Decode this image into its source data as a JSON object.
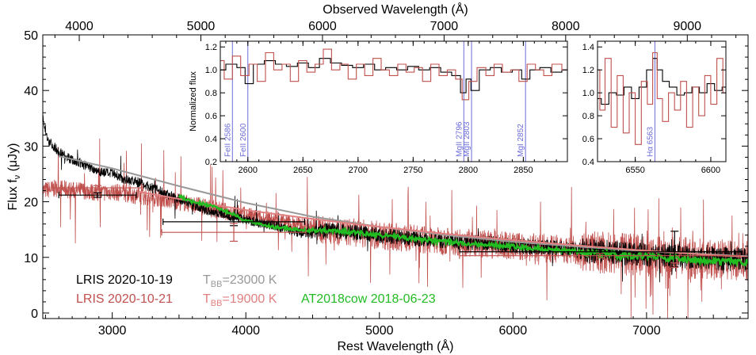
{
  "chart_data": {
    "type": "line",
    "main": {
      "xlabel": "Rest Wavelength (Å)",
      "ylabel": "Flux f_ν (μJy)",
      "ylabel_parts": {
        "base": "Flux f",
        "sub": "ν",
        "unit": " (μJy)"
      },
      "x2label": "Observed Wavelength (Å)",
      "xlim": [
        2480,
        7760
      ],
      "ylim": [
        -1,
        50
      ],
      "x2lim": [
        3700,
        9500
      ],
      "xticks": [
        3000,
        4000,
        5000,
        6000,
        7000
      ],
      "yticks": [
        0,
        10,
        20,
        30,
        40,
        50
      ],
      "x2ticks": [
        4000,
        5000,
        6000,
        7000,
        8000,
        9000
      ],
      "series": [
        {
          "key": "lris19",
          "name": "LRIS 2020-10-19",
          "color": "#000000",
          "x": [
            2480,
            2520,
            2600,
            2700,
            2800,
            2900,
            3000,
            3100,
            3200,
            3300,
            3400,
            3500,
            3600,
            3700,
            3800,
            3900,
            4000,
            4100,
            4200,
            4300,
            4400,
            4500,
            4600,
            4800,
            5000,
            5200,
            5400,
            5600,
            5800,
            6000,
            6200,
            6400,
            6600,
            6800,
            7000,
            7200,
            7400,
            7600,
            7760
          ],
          "y": [
            35,
            31,
            29,
            27.5,
            26.5,
            25.5,
            25,
            24,
            23.5,
            22.5,
            21.5,
            20.5,
            19.5,
            18.5,
            18,
            17.3,
            16.8,
            16.2,
            15.8,
            15,
            14.5,
            14.2,
            14.8,
            14.5,
            14,
            13.6,
            13.2,
            12.8,
            12.5,
            12,
            11.8,
            11.5,
            11.2,
            10.8,
            10.5,
            10.2,
            10,
            9.7,
            9.5
          ]
        },
        {
          "key": "lris21",
          "name": "LRIS 2020-10-21",
          "color": "#c0504d",
          "x": [
            2480,
            2600,
            2700,
            2800,
            2900,
            3000,
            3100,
            3200,
            3300,
            3400,
            3500,
            3600,
            3700,
            3800,
            3900,
            4000,
            4100,
            4200,
            4300,
            4400,
            4500,
            4600,
            4800,
            5000,
            5200,
            5400,
            5600,
            5800,
            6000,
            6200,
            6400,
            6600,
            6800,
            7000,
            7200,
            7400,
            7600,
            7760
          ],
          "y": [
            22,
            22.5,
            22,
            22,
            21.5,
            21.8,
            21.5,
            21,
            20.8,
            20.5,
            20,
            19.5,
            19,
            18.5,
            18,
            17.5,
            17,
            16.6,
            16.2,
            15.8,
            15.3,
            14.8,
            14.5,
            14,
            13.5,
            13,
            12.8,
            12.4,
            12,
            11.7,
            11.4,
            11,
            10.6,
            10.3,
            10,
            9.7,
            9.4,
            9.2
          ]
        },
        {
          "key": "bb23",
          "name": "T_BB=23000 K",
          "color": "#999999",
          "x": [
            2600,
            3000,
            3500,
            4000,
            4500,
            5000,
            5500,
            6000,
            6500,
            7000,
            7500,
            7760
          ],
          "y": [
            28.2,
            26,
            22.8,
            19.8,
            17.3,
            15.5,
            14,
            12.8,
            11.9,
            11.1,
            10.5,
            10.2
          ]
        },
        {
          "key": "bb19",
          "name": "T_BB=19000 K",
          "color": "#e08080",
          "x": [
            3200,
            3500,
            4000,
            4500,
            5000,
            5500,
            6000,
            6500,
            7000,
            7500,
            7760
          ],
          "y": [
            21.8,
            20.5,
            18.5,
            16.9,
            15.5,
            14.2,
            13.1,
            12.1,
            11.2,
            10.4,
            10.1
          ]
        },
        {
          "key": "cow",
          "name": "AT2018cow 2018-06-23",
          "color": "#22bb22",
          "x": [
            3500,
            3600,
            3700,
            3800,
            3900,
            4000,
            4100,
            4200,
            4300,
            4400,
            4500,
            4600,
            4800,
            5000,
            5200,
            5400,
            5600,
            5800,
            6000,
            6200,
            6400,
            6600,
            6800,
            7000,
            7200,
            7400,
            7600,
            7760
          ],
          "y": [
            21,
            20,
            19.5,
            18.8,
            17.8,
            16.5,
            16,
            15.5,
            15.2,
            15,
            14.8,
            14.8,
            14.5,
            14,
            13.5,
            13,
            12.6,
            12.3,
            12,
            11.6,
            11.2,
            10.8,
            10.4,
            10.1,
            9.8,
            9.5,
            9.2,
            9.0
          ]
        }
      ],
      "photometry": [
        {
          "color": "#000000",
          "x": 2890,
          "xerr": 290,
          "y": 21.2,
          "yerr": 0.4
        },
        {
          "color": "#c0504d",
          "x": 2890,
          "xerr": 340,
          "y": 22.5,
          "yerr": 0.4
        },
        {
          "color": "#000000",
          "x": 3910,
          "xerr": 530,
          "y": 16.4,
          "yerr": 0.7
        },
        {
          "color": "#c0504d",
          "x": 3910,
          "xerr": 540,
          "y": 14.5,
          "yerr": 1.6
        },
        {
          "color": "#000000",
          "x": 6650,
          "xerr": 1050,
          "y": 11.0,
          "yerr": 0.4
        },
        {
          "color": "#c0504d",
          "x": 6650,
          "xerr": 1050,
          "y": 10.3,
          "yerr": 0.4
        },
        {
          "color": "#000000",
          "x": 7210,
          "xerr": 0,
          "y": 11.5,
          "yerr": 3.2
        },
        {
          "color": "#c0504d",
          "x": 7210,
          "xerr": 0,
          "y": 8.6,
          "yerr": 0.4
        }
      ],
      "legend": [
        {
          "text": "LRIS 2020-10-19",
          "color": "#000000"
        },
        {
          "text": "LRIS 2020-10-21",
          "color": "#c0504d"
        },
        {
          "text_base": "T",
          "text_sub": "BB",
          "text_rest": "=23000 K",
          "color": "#999999"
        },
        {
          "text_base": "T",
          "text_sub": "BB",
          "text_rest": "=19000 K",
          "color": "#e08080"
        },
        {
          "text": "AT2018cow 2018-06-23",
          "color": "#22bb22"
        }
      ]
    },
    "inset_uv": {
      "ylabel": "Normalized flux",
      "xlim": [
        2575,
        2890
      ],
      "ylim": [
        0.2,
        1.25
      ],
      "xticks": [
        2600,
        2650,
        2700,
        2750,
        2800,
        2850
      ],
      "yticks": [
        0.2,
        0.4,
        0.6,
        0.8,
        1.0,
        1.2
      ],
      "ytick_labels": [
        "0.2",
        "0.4",
        "0.6",
        "0.8",
        "1.0",
        "1.2"
      ],
      "lines": [
        {
          "x": 2586,
          "label": "FeII 2586"
        },
        {
          "x": 2600,
          "label": "FeII 2600"
        },
        {
          "x": 2796,
          "label": "MgII 2796"
        },
        {
          "x": 2803,
          "label": "MgII 2803"
        },
        {
          "x": 2852,
          "label": "MgI 2852"
        }
      ],
      "series": [
        {
          "key": "uv_black",
          "color": "#000000",
          "x": [
            2575,
            2585,
            2595,
            2600,
            2610,
            2620,
            2630,
            2640,
            2650,
            2660,
            2670,
            2680,
            2690,
            2700,
            2710,
            2720,
            2730,
            2740,
            2750,
            2760,
            2770,
            2780,
            2790,
            2796,
            2800,
            2805,
            2815,
            2825,
            2835,
            2845,
            2852,
            2860,
            2870,
            2880,
            2890
          ],
          "y": [
            1.0,
            1.05,
            1.02,
            0.88,
            1.05,
            1.08,
            1.05,
            1.03,
            1.06,
            1.02,
            1.1,
            1.06,
            1.04,
            1.02,
            1.05,
            1.0,
            1.02,
            1.0,
            1.03,
            1.0,
            1.02,
            0.98,
            0.95,
            0.8,
            0.92,
            0.82,
            1.0,
            1.02,
            0.98,
            1.0,
            0.92,
            1.0,
            1.02,
            0.98,
            1.0
          ]
        },
        {
          "key": "uv_red",
          "color": "#c0504d",
          "x": [
            2575,
            2582,
            2590,
            2597,
            2605,
            2612,
            2620,
            2627,
            2635,
            2642,
            2650,
            2657,
            2665,
            2672,
            2680,
            2687,
            2695,
            2702,
            2710,
            2717,
            2725,
            2732,
            2740,
            2747,
            2755,
            2762,
            2770,
            2777,
            2785,
            2792,
            2797,
            2804,
            2812,
            2820,
            2827,
            2835,
            2842,
            2850,
            2857,
            2865,
            2872,
            2880,
            2890
          ],
          "y": [
            1.08,
            0.92,
            1.12,
            0.95,
            1.05,
            0.9,
            1.15,
            1.0,
            1.05,
            0.9,
            1.08,
            0.98,
            1.05,
            1.18,
            1.0,
            1.05,
            0.92,
            1.05,
            0.95,
            1.1,
            1.0,
            0.95,
            1.05,
            0.98,
            1.02,
            0.9,
            1.05,
            0.95,
            1.0,
            0.92,
            0.74,
            0.9,
            1.02,
            0.95,
            1.05,
            0.98,
            1.0,
            0.9,
            1.05,
            1.0,
            0.95,
            1.05,
            1.0
          ]
        }
      ]
    },
    "inset_ha": {
      "xlim": [
        6525,
        6610
      ],
      "ylim": [
        0.4,
        1.45
      ],
      "xticks": [
        6550,
        6600
      ],
      "yticks": [
        0.4,
        0.6,
        0.8,
        1.0,
        1.2,
        1.4
      ],
      "ytick_labels": [
        "0.4",
        "0.6",
        "0.8",
        "1.0",
        "1.2",
        "1.4"
      ],
      "lines": [
        {
          "x": 6563,
          "label": "Hα 6563"
        }
      ],
      "series": [
        {
          "key": "ha_black",
          "color": "#000000",
          "x": [
            6525,
            6530,
            6535,
            6540,
            6545,
            6550,
            6555,
            6560,
            6563,
            6566,
            6570,
            6575,
            6580,
            6585,
            6590,
            6595,
            6600,
            6605,
            6610
          ],
          "y": [
            0.95,
            0.9,
            1.0,
            0.98,
            1.05,
            0.95,
            1.05,
            1.2,
            1.3,
            1.2,
            1.1,
            1.05,
            0.98,
            1.0,
            1.05,
            1.0,
            1.08,
            1.02,
            1.05
          ]
        },
        {
          "key": "ha_red",
          "color": "#c0504d",
          "x": [
            6525,
            6528,
            6532,
            6536,
            6540,
            6544,
            6548,
            6552,
            6556,
            6560,
            6563,
            6566,
            6570,
            6574,
            6578,
            6582,
            6586,
            6590,
            6594,
            6598,
            6602,
            6606,
            6610
          ],
          "y": [
            1.2,
            0.85,
            1.3,
            0.7,
            1.15,
            0.65,
            1.0,
            0.55,
            1.1,
            0.9,
            1.35,
            0.95,
            0.75,
            1.0,
            0.85,
            1.1,
            0.7,
            1.05,
            0.8,
            1.15,
            0.9,
            1.3,
            1.0
          ]
        }
      ]
    }
  }
}
